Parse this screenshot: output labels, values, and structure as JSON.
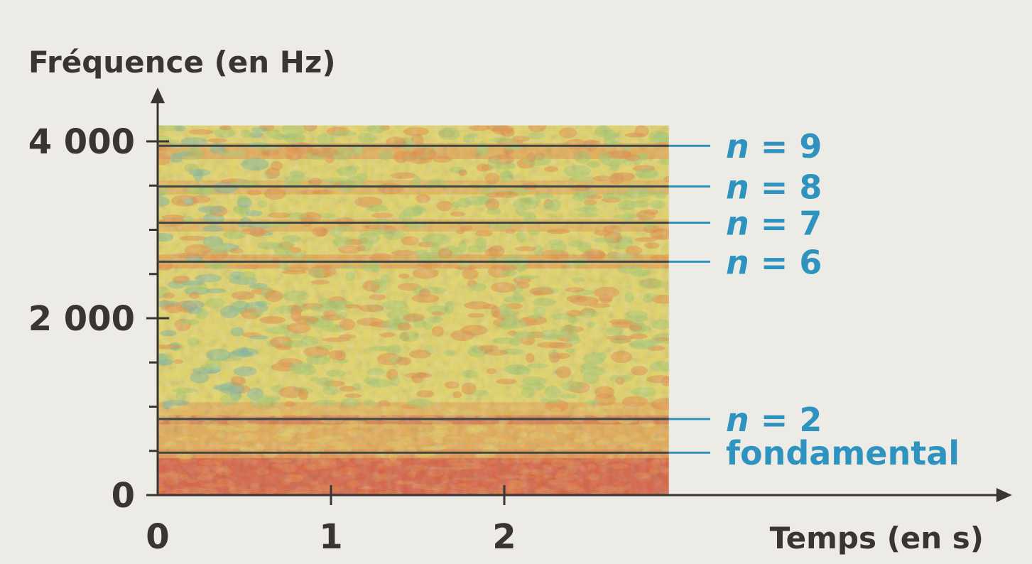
{
  "chart_data": {
    "type": "heatmap",
    "title": "",
    "ylabel": "Fréquence (en Hz)",
    "xlabel": "Temps (en s)",
    "xlim": [
      0,
      4.7
    ],
    "ylim": [
      0,
      4400
    ],
    "data_extent": {
      "t_end": 2.95,
      "f_max": 4180
    },
    "xticks": [
      0,
      1,
      2
    ],
    "xtick_labels": [
      "0",
      "1",
      "2"
    ],
    "yticks": [
      0,
      2000,
      4000
    ],
    "ytick_labels": [
      "0",
      "2 000",
      "4 000"
    ],
    "y_minor_step": 500,
    "harmonics": [
      {
        "label": "fondamental",
        "n": "",
        "eq": "",
        "freq": 480
      },
      {
        "label": "",
        "n": "n",
        "eq": " = 2",
        "freq": 860
      },
      {
        "label": "",
        "n": "n",
        "eq": " = 6",
        "freq": 2640
      },
      {
        "label": "",
        "n": "n",
        "eq": " = 7",
        "freq": 3080
      },
      {
        "label": "",
        "n": "n",
        "eq": " = 8",
        "freq": 3490
      },
      {
        "label": "",
        "n": "n",
        "eq": " = 9",
        "freq": 3950
      }
    ],
    "colors": {
      "axis": "#3a3533",
      "harmonic_label": "#2f93c0",
      "harmonic_line": "#3e4a48",
      "red": "#d65a3e",
      "orange": "#e48d44",
      "yellow": "#e3d465",
      "green": "#a8c86a",
      "teal": "#7fb79a"
    }
  }
}
